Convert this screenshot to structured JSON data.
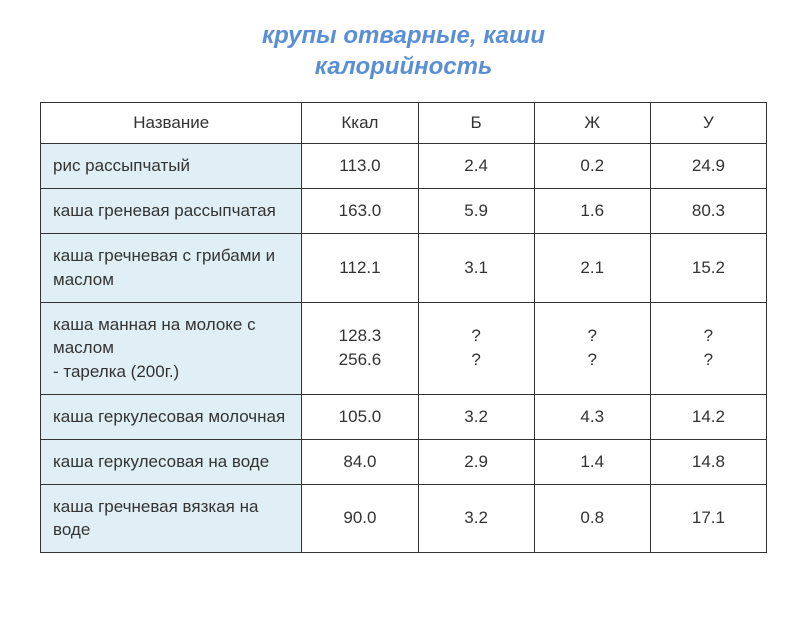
{
  "title_line1": "крупы отварные, каши",
  "title_line2": "калорийность",
  "headers": {
    "name": "Название",
    "kcal": "Ккал",
    "b": "Б",
    "zh": "Ж",
    "u": "У"
  },
  "rows": [
    {
      "name": "рис рассыпчатый",
      "kcal": "113.0",
      "b": "2.4",
      "zh": "0.2",
      "u": "24.9"
    },
    {
      "name": "каша греневая рассыпчатая",
      "kcal": "163.0",
      "b": "5.9",
      "zh": "1.6",
      "u": "80.3"
    },
    {
      "name": "каша гречневая с грибами и маслом",
      "kcal": "112.1",
      "b": "3.1",
      "zh": "2.1",
      "u": "15.2"
    },
    {
      "name": "каша манная на молоке с маслом\n- тарелка (200г.)",
      "kcal": "128.3\n256.6",
      "b": "?\n?",
      "zh": "?\n?",
      "u": "?\n?"
    },
    {
      "name": "каша геркулесовая молочная",
      "kcal": "105.0",
      "b": "3.2",
      "zh": "4.3",
      "u": "14.2"
    },
    {
      "name": "каша геркулесовая на воде",
      "kcal": "84.0",
      "b": "2.9",
      "zh": "1.4",
      "u": "14.8"
    },
    {
      "name": "каша гречневая вязкая на воде",
      "kcal": "90.0",
      "b": "3.2",
      "zh": "0.8",
      "u": "17.1"
    }
  ],
  "colors": {
    "title": "#5a8fd6",
    "name_cell_bg": "#e0eff5",
    "value_cell_bg": "#ffffff",
    "border": "#333333",
    "text": "#333333"
  }
}
